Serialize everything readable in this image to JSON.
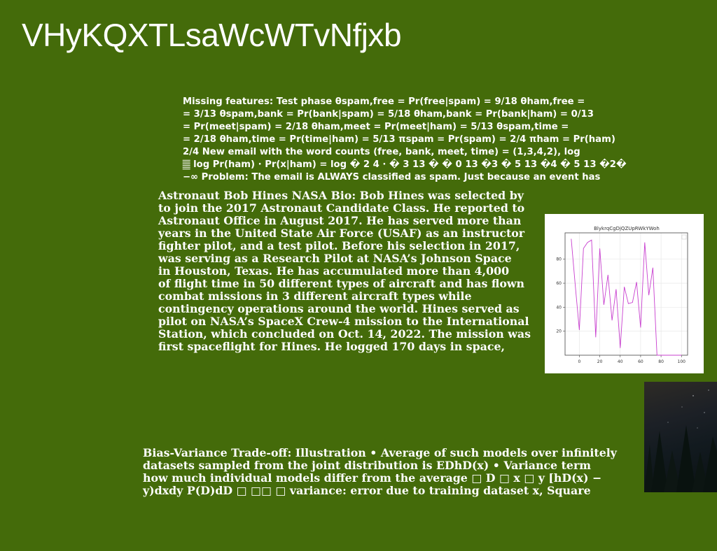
{
  "page": {
    "title": "VHyKQXTLsaWcWTvNfjxb"
  },
  "block1": {
    "lines": [
      "Missing features: Test phase θspam,free = Pr(free|spam) = 9/18 θham,free =",
      "= 3/13 θspam,bank = Pr(bank|spam) = 5/18 θham,bank = Pr(bank|ham) = 0/13",
      "= Pr(meet|spam) = 2/18 θham,meet = Pr(meet|ham) = 5/13 θspam,time =",
      "= 2/18 θham,time = Pr(time|ham) = 5/13 πspam = Pr(spam) = 2/4 πham = Pr(ham)",
      "2/4 New email with the word counts (free, bank, meet, time) = (1,3,4,2), log",
      "𝄛 log Pr(ham) · Pr(x|ham) = log � 2 4 · � 3 13 � � 0 13 �3 � 5 13 �4 � 5 13 �2�",
      "−∞ Problem: The email is ALWAYS classified as spam. Just because an event has"
    ]
  },
  "block2": {
    "lines": [
      "Astronaut Bob Hines NASA Bio: Bob Hines was selected by",
      "to join the 2017 Astronaut Candidate Class. He reported to",
      "Astronaut Office in August 2017. He has served more than",
      "years in the United State Air Force (USAF) as an instructor",
      "fighter pilot, and a test pilot. Before his selection in 2017,",
      "was serving as a Research Pilot at NASA’s Johnson Space",
      "in Houston, Texas. He has accumulated more than 4,000",
      "of flight time in 50 different types of aircraft and has flown",
      "combat missions in 3 different aircraft types while",
      "contingency operations around the world. Hines served as",
      "pilot on NASA’s SpaceX Crew-4 mission to the International",
      "Station, which concluded on Oct. 14, 2022. The mission was",
      "first spaceflight for Hines. He logged 170 days in space,"
    ]
  },
  "block3": {
    "lines": [
      "Bias-Variance Trade-off: Illustration • Average of such models over infinitely",
      "datasets sampled from the joint distribution is EDhD(x) • Variance term",
      "how much individual models differ from the average □ D □ x □ y [hD(x) −",
      "y)dxdy P(D)dD □ □□ □ variance: error due to training dataset x, Square"
    ]
  },
  "chart_data": {
    "type": "line",
    "title": "BlykrqCgDjQZUpRWkYWoh",
    "x": [
      4,
      8,
      12,
      16,
      20,
      24,
      28,
      32,
      36,
      40,
      44,
      48,
      52,
      56,
      60,
      64,
      68,
      72,
      76,
      80,
      84,
      88,
      92,
      96,
      100
    ],
    "y": [
      97,
      58,
      21,
      89,
      94,
      96,
      15,
      89,
      42,
      67,
      29,
      55,
      6,
      57,
      43,
      44,
      61,
      23,
      94,
      50,
      73,
      0,
      0,
      0,
      0
    ],
    "series": [
      {
        "x": [
          -8,
          -4,
          0,
          4,
          8,
          12,
          16,
          20,
          24,
          28,
          32,
          36,
          40,
          44,
          48,
          52,
          56,
          60,
          64,
          68,
          72,
          76,
          80,
          84,
          88,
          92,
          96,
          100
        ],
        "y": [
          97,
          58,
          21,
          89,
          94,
          96,
          15,
          89,
          42,
          67,
          29,
          55,
          6,
          57,
          43,
          44,
          61,
          23,
          94,
          50,
          73,
          0,
          0,
          0,
          0,
          0,
          0,
          0
        ]
      }
    ],
    "xlim": [
      -14,
      106
    ],
    "ylim": [
      0,
      102
    ],
    "xticks": [
      0,
      20,
      40,
      60,
      80,
      100
    ],
    "yticks": [
      20,
      40,
      60,
      80
    ],
    "grid": true,
    "line_color": "#c83fcf"
  }
}
